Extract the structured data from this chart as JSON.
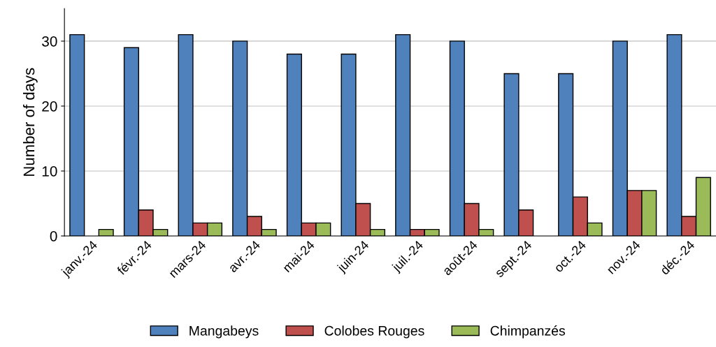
{
  "chart_data": {
    "type": "bar",
    "ylabel": "Number of days",
    "categories": [
      "janv.-24",
      "févr.-24",
      "mars-24",
      "avr.-24",
      "mai-24",
      "juin-24",
      "juil.-24",
      "août-24",
      "sept.-24",
      "oct.-24",
      "nov.-24",
      "déc.-24"
    ],
    "series": [
      {
        "name": "Mangabeys",
        "color": "#4f81bd",
        "values": [
          31,
          29,
          31,
          30,
          28,
          28,
          31,
          30,
          25,
          25,
          30,
          31
        ]
      },
      {
        "name": "Colobes Rouges",
        "color": "#c0504d",
        "values": [
          0,
          4,
          2,
          3,
          2,
          5,
          1,
          5,
          4,
          6,
          7,
          3
        ]
      },
      {
        "name": "Chimpanzés",
        "color": "#9bbb59",
        "values": [
          1,
          1,
          2,
          1,
          2,
          1,
          1,
          1,
          0,
          2,
          7,
          9
        ]
      }
    ],
    "ylim": [
      0,
      35
    ],
    "yticks": [
      0,
      10,
      20,
      30
    ],
    "grid": "y",
    "legend": "bottom"
  }
}
